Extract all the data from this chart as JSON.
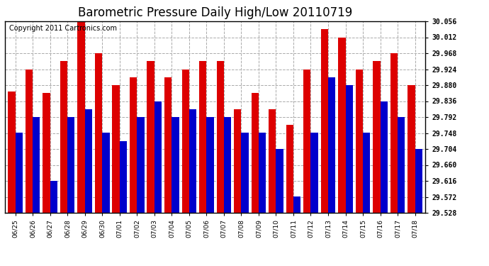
{
  "title": "Barometric Pressure Daily High/Low 20110719",
  "copyright": "Copyright 2011 Cartronics.com",
  "dates": [
    "06/25",
    "06/26",
    "06/27",
    "06/28",
    "06/29",
    "06/30",
    "07/01",
    "07/02",
    "07/03",
    "07/04",
    "07/05",
    "07/06",
    "07/07",
    "07/08",
    "07/09",
    "07/10",
    "07/11",
    "07/12",
    "07/13",
    "07/14",
    "07/15",
    "07/16",
    "07/17",
    "07/18"
  ],
  "highs": [
    29.862,
    29.924,
    29.858,
    29.946,
    30.078,
    29.968,
    29.88,
    29.902,
    29.946,
    29.902,
    29.924,
    29.946,
    29.946,
    29.814,
    29.858,
    29.814,
    29.77,
    29.924,
    30.034,
    30.012,
    29.924,
    29.946,
    29.968,
    29.88
  ],
  "lows": [
    29.748,
    29.792,
    29.616,
    29.792,
    29.814,
    29.748,
    29.726,
    29.792,
    29.836,
    29.792,
    29.814,
    29.792,
    29.792,
    29.748,
    29.748,
    29.704,
    29.572,
    29.748,
    29.902,
    29.88,
    29.748,
    29.836,
    29.792,
    29.704
  ],
  "y_min": 29.528,
  "y_max": 30.056,
  "y_ticks": [
    29.528,
    29.572,
    29.616,
    29.66,
    29.704,
    29.748,
    29.792,
    29.836,
    29.88,
    29.924,
    29.968,
    30.012,
    30.056
  ],
  "high_color": "#dd0000",
  "low_color": "#0000cc",
  "bg_color": "#ffffff",
  "grid_color": "#aaaaaa",
  "title_fontsize": 12,
  "copyright_fontsize": 7,
  "bar_width": 0.42,
  "figwidth": 6.9,
  "figheight": 3.75,
  "dpi": 100
}
